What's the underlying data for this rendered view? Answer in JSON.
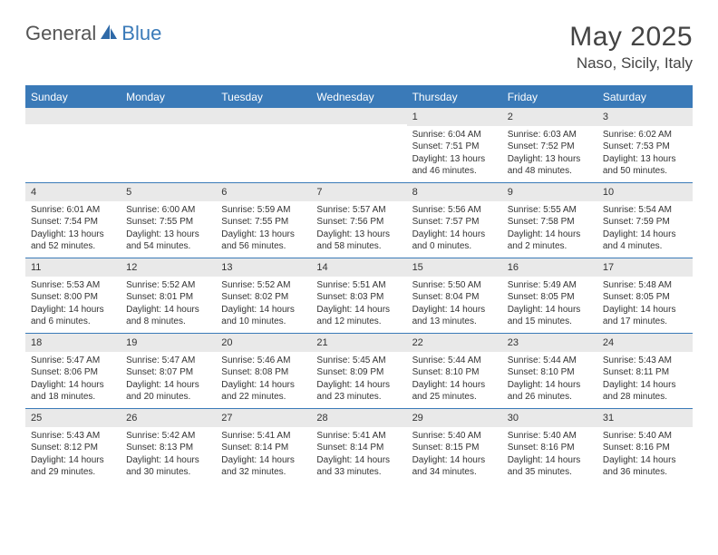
{
  "logo": {
    "text1": "General",
    "text2": "Blue",
    "sail_color": "#2f6aa8"
  },
  "title": "May 2025",
  "location": "Naso, Sicily, Italy",
  "header_bg": "#3a7ab8",
  "dayHeaders": [
    "Sunday",
    "Monday",
    "Tuesday",
    "Wednesday",
    "Thursday",
    "Friday",
    "Saturday"
  ],
  "weeks": [
    [
      {
        "n": "",
        "lines": []
      },
      {
        "n": "",
        "lines": []
      },
      {
        "n": "",
        "lines": []
      },
      {
        "n": "",
        "lines": []
      },
      {
        "n": "1",
        "lines": [
          "Sunrise: 6:04 AM",
          "Sunset: 7:51 PM",
          "Daylight: 13 hours",
          "and 46 minutes."
        ]
      },
      {
        "n": "2",
        "lines": [
          "Sunrise: 6:03 AM",
          "Sunset: 7:52 PM",
          "Daylight: 13 hours",
          "and 48 minutes."
        ]
      },
      {
        "n": "3",
        "lines": [
          "Sunrise: 6:02 AM",
          "Sunset: 7:53 PM",
          "Daylight: 13 hours",
          "and 50 minutes."
        ]
      }
    ],
    [
      {
        "n": "4",
        "lines": [
          "Sunrise: 6:01 AM",
          "Sunset: 7:54 PM",
          "Daylight: 13 hours",
          "and 52 minutes."
        ]
      },
      {
        "n": "5",
        "lines": [
          "Sunrise: 6:00 AM",
          "Sunset: 7:55 PM",
          "Daylight: 13 hours",
          "and 54 minutes."
        ]
      },
      {
        "n": "6",
        "lines": [
          "Sunrise: 5:59 AM",
          "Sunset: 7:55 PM",
          "Daylight: 13 hours",
          "and 56 minutes."
        ]
      },
      {
        "n": "7",
        "lines": [
          "Sunrise: 5:57 AM",
          "Sunset: 7:56 PM",
          "Daylight: 13 hours",
          "and 58 minutes."
        ]
      },
      {
        "n": "8",
        "lines": [
          "Sunrise: 5:56 AM",
          "Sunset: 7:57 PM",
          "Daylight: 14 hours",
          "and 0 minutes."
        ]
      },
      {
        "n": "9",
        "lines": [
          "Sunrise: 5:55 AM",
          "Sunset: 7:58 PM",
          "Daylight: 14 hours",
          "and 2 minutes."
        ]
      },
      {
        "n": "10",
        "lines": [
          "Sunrise: 5:54 AM",
          "Sunset: 7:59 PM",
          "Daylight: 14 hours",
          "and 4 minutes."
        ]
      }
    ],
    [
      {
        "n": "11",
        "lines": [
          "Sunrise: 5:53 AM",
          "Sunset: 8:00 PM",
          "Daylight: 14 hours",
          "and 6 minutes."
        ]
      },
      {
        "n": "12",
        "lines": [
          "Sunrise: 5:52 AM",
          "Sunset: 8:01 PM",
          "Daylight: 14 hours",
          "and 8 minutes."
        ]
      },
      {
        "n": "13",
        "lines": [
          "Sunrise: 5:52 AM",
          "Sunset: 8:02 PM",
          "Daylight: 14 hours",
          "and 10 minutes."
        ]
      },
      {
        "n": "14",
        "lines": [
          "Sunrise: 5:51 AM",
          "Sunset: 8:03 PM",
          "Daylight: 14 hours",
          "and 12 minutes."
        ]
      },
      {
        "n": "15",
        "lines": [
          "Sunrise: 5:50 AM",
          "Sunset: 8:04 PM",
          "Daylight: 14 hours",
          "and 13 minutes."
        ]
      },
      {
        "n": "16",
        "lines": [
          "Sunrise: 5:49 AM",
          "Sunset: 8:05 PM",
          "Daylight: 14 hours",
          "and 15 minutes."
        ]
      },
      {
        "n": "17",
        "lines": [
          "Sunrise: 5:48 AM",
          "Sunset: 8:05 PM",
          "Daylight: 14 hours",
          "and 17 minutes."
        ]
      }
    ],
    [
      {
        "n": "18",
        "lines": [
          "Sunrise: 5:47 AM",
          "Sunset: 8:06 PM",
          "Daylight: 14 hours",
          "and 18 minutes."
        ]
      },
      {
        "n": "19",
        "lines": [
          "Sunrise: 5:47 AM",
          "Sunset: 8:07 PM",
          "Daylight: 14 hours",
          "and 20 minutes."
        ]
      },
      {
        "n": "20",
        "lines": [
          "Sunrise: 5:46 AM",
          "Sunset: 8:08 PM",
          "Daylight: 14 hours",
          "and 22 minutes."
        ]
      },
      {
        "n": "21",
        "lines": [
          "Sunrise: 5:45 AM",
          "Sunset: 8:09 PM",
          "Daylight: 14 hours",
          "and 23 minutes."
        ]
      },
      {
        "n": "22",
        "lines": [
          "Sunrise: 5:44 AM",
          "Sunset: 8:10 PM",
          "Daylight: 14 hours",
          "and 25 minutes."
        ]
      },
      {
        "n": "23",
        "lines": [
          "Sunrise: 5:44 AM",
          "Sunset: 8:10 PM",
          "Daylight: 14 hours",
          "and 26 minutes."
        ]
      },
      {
        "n": "24",
        "lines": [
          "Sunrise: 5:43 AM",
          "Sunset: 8:11 PM",
          "Daylight: 14 hours",
          "and 28 minutes."
        ]
      }
    ],
    [
      {
        "n": "25",
        "lines": [
          "Sunrise: 5:43 AM",
          "Sunset: 8:12 PM",
          "Daylight: 14 hours",
          "and 29 minutes."
        ]
      },
      {
        "n": "26",
        "lines": [
          "Sunrise: 5:42 AM",
          "Sunset: 8:13 PM",
          "Daylight: 14 hours",
          "and 30 minutes."
        ]
      },
      {
        "n": "27",
        "lines": [
          "Sunrise: 5:41 AM",
          "Sunset: 8:14 PM",
          "Daylight: 14 hours",
          "and 32 minutes."
        ]
      },
      {
        "n": "28",
        "lines": [
          "Sunrise: 5:41 AM",
          "Sunset: 8:14 PM",
          "Daylight: 14 hours",
          "and 33 minutes."
        ]
      },
      {
        "n": "29",
        "lines": [
          "Sunrise: 5:40 AM",
          "Sunset: 8:15 PM",
          "Daylight: 14 hours",
          "and 34 minutes."
        ]
      },
      {
        "n": "30",
        "lines": [
          "Sunrise: 5:40 AM",
          "Sunset: 8:16 PM",
          "Daylight: 14 hours",
          "and 35 minutes."
        ]
      },
      {
        "n": "31",
        "lines": [
          "Sunrise: 5:40 AM",
          "Sunset: 8:16 PM",
          "Daylight: 14 hours",
          "and 36 minutes."
        ]
      }
    ]
  ]
}
